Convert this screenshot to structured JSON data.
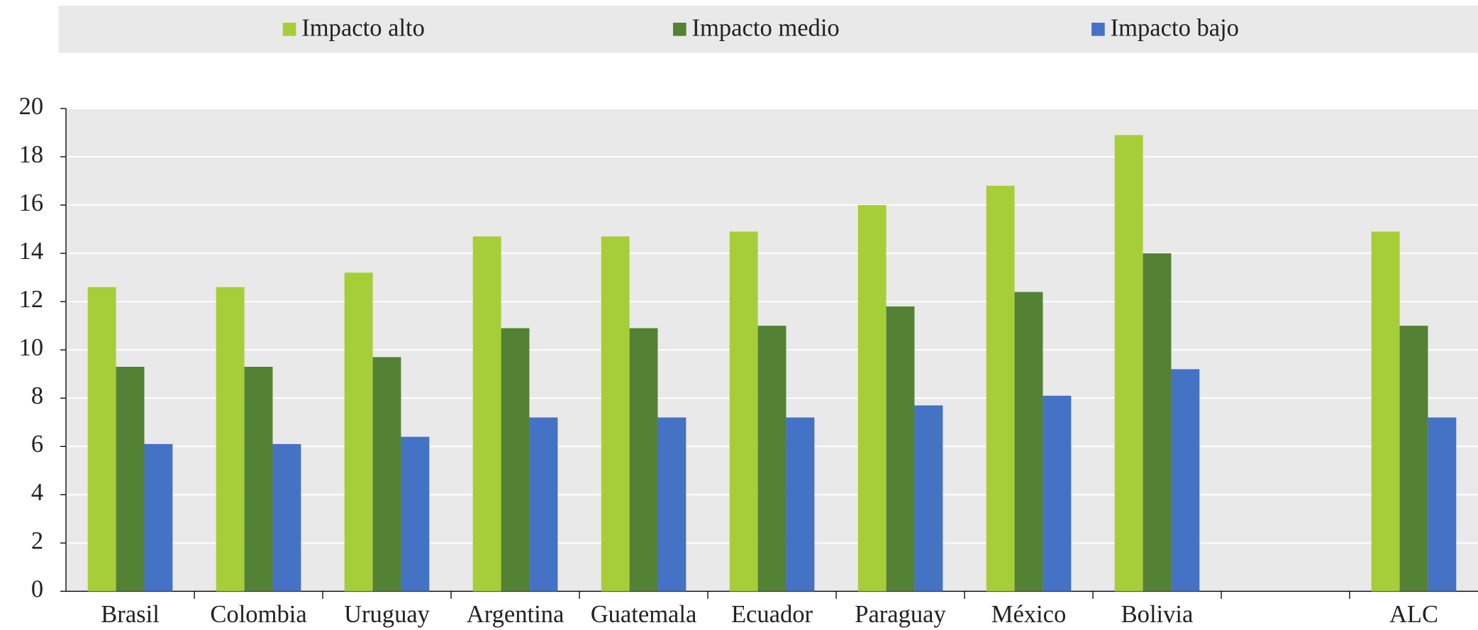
{
  "chart_data": {
    "type": "bar",
    "categories": [
      "Brasil",
      "Colombia",
      "Uruguay",
      "Argentina",
      "Guatemala",
      "Ecuador",
      "Paraguay",
      "México",
      "Bolivia",
      null,
      "ALC"
    ],
    "series": [
      {
        "name": "Impacto alto",
        "color": "#a6ce39",
        "values": [
          12.6,
          12.6,
          13.2,
          14.7,
          14.7,
          14.9,
          16.0,
          16.8,
          18.9,
          null,
          14.9
        ]
      },
      {
        "name": "Impacto medio",
        "color": "#548235",
        "values": [
          9.3,
          9.3,
          9.7,
          10.9,
          10.9,
          11.0,
          11.8,
          12.4,
          14.0,
          null,
          11.0
        ]
      },
      {
        "name": "Impacto bajo",
        "color": "#4472c4",
        "values": [
          6.1,
          6.1,
          6.4,
          7.2,
          7.2,
          7.2,
          7.7,
          8.1,
          9.2,
          null,
          7.2
        ]
      }
    ],
    "ylim": [
      0,
      20
    ],
    "yticks": [
      0,
      2,
      4,
      6,
      8,
      10,
      12,
      14,
      16,
      18,
      20
    ],
    "grid": true,
    "legend": "top"
  }
}
